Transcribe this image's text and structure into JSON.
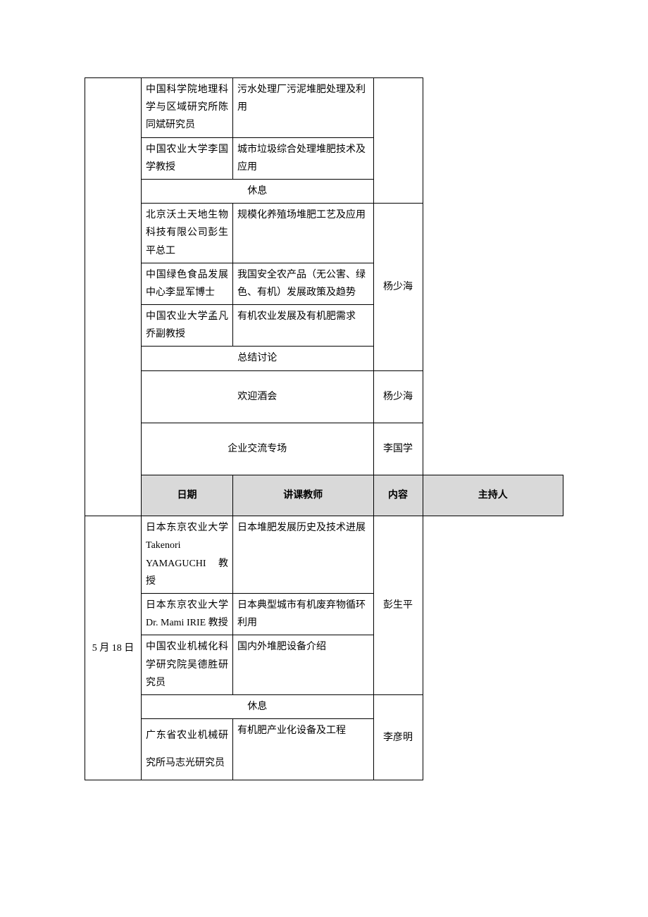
{
  "headers": {
    "date": "日期",
    "teacher": "讲课教师",
    "content": "内容",
    "host": "主持人"
  },
  "labels": {
    "rest": "休息",
    "summary": "总结讨论",
    "reception": "欢迎酒会",
    "enterprise": "企业交流专场"
  },
  "hosts": {
    "yang": "杨少海",
    "li_guoxue": "李国学",
    "peng": "彭生平",
    "li_yanming": "李彦明"
  },
  "dates": {
    "may18": "5 月 18 日"
  },
  "section1": {
    "rows": [
      {
        "teacher": "中国科学院地理科学与区域研究所陈同斌研究员",
        "content": "污水处理厂污泥堆肥处理及利用"
      },
      {
        "teacher": "中国农业大学李国学教授",
        "content": "城市垃圾综合处理堆肥技术及应用"
      }
    ],
    "rows2": [
      {
        "teacher": "北京沃土天地生物科技有限公司彭生平总工",
        "content": "规模化养殖场堆肥工艺及应用"
      },
      {
        "teacher": "中国绿色食品发展中心李显军博士",
        "content": "我国安全农产品（无公害、绿色、有机）发展政策及趋势"
      },
      {
        "teacher": "中国农业大学孟凡乔副教授",
        "content": "有机农业发展及有机肥需求"
      }
    ]
  },
  "section2": {
    "rows": [
      {
        "teacher": "日本东京农业大学 Takenori YAMAGUCHI 教授",
        "content": "日本堆肥发展历史及技术进展"
      },
      {
        "teacher": "日本东京农业大学 Dr. Mami IRIE 教授",
        "content": "日本典型城市有机废弃物循环利用"
      },
      {
        "teacher": "中国农业机械化科学研究院吴德胜研究员",
        "content": "国内外堆肥设备介绍"
      }
    ],
    "rows2": [
      {
        "teacher": "广东省农业机械研究所马志光研究员",
        "content": "有机肥产业化设备及工程"
      }
    ]
  },
  "styling": {
    "border_color": "#000000",
    "header_bg": "#d9d9d9",
    "font_family": "SimSun",
    "font_size": 14,
    "page_bg": "#ffffff",
    "column_widths": {
      "date": 80,
      "teacher": 130,
      "host": 70
    }
  }
}
